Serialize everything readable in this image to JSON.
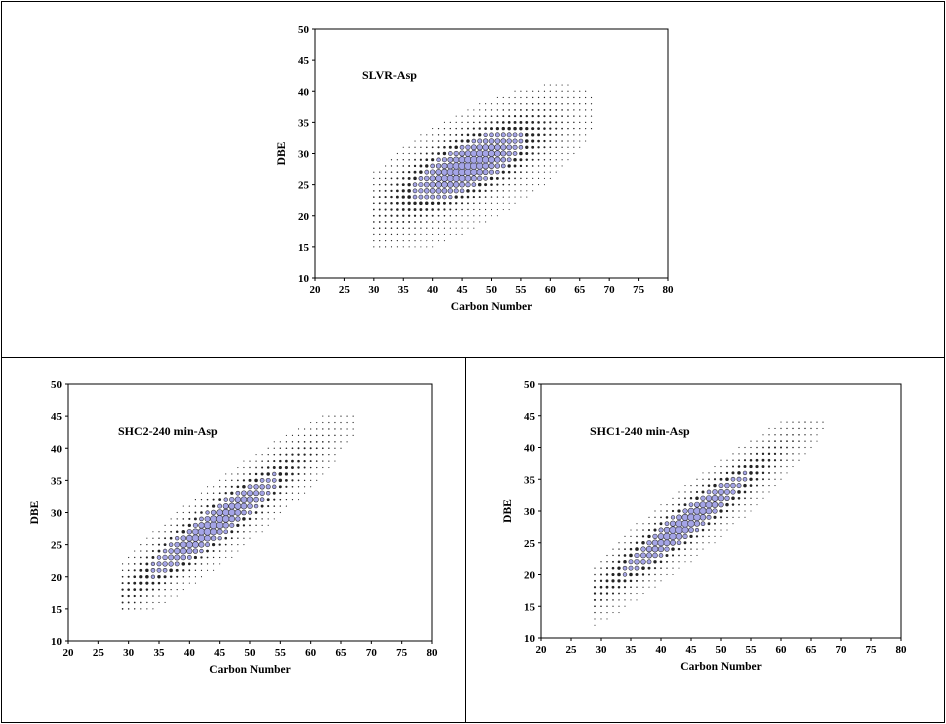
{
  "chart_data": [
    {
      "type": "scatter",
      "title": "SLVR-Asp",
      "xlabel": "Carbon Number",
      "ylabel": "DBE",
      "xlim": [
        20,
        80
      ],
      "ylim": [
        10,
        50
      ],
      "xticks": [
        "20",
        "25",
        "30",
        "35",
        "40",
        "45",
        "50",
        "55",
        "60",
        "65",
        "70",
        "75",
        "80"
      ],
      "yticks": [
        "10",
        "15",
        "20",
        "25",
        "30",
        "35",
        "40",
        "45",
        "50"
      ],
      "grid": false,
      "bubble_field": {
        "description_units": "data",
        "c_range": [
          30,
          70
        ],
        "dbe_range": [
          15,
          41
        ],
        "ridge_slope": 0.44,
        "ridge_intercept": 7,
        "center_c": 46,
        "center_dbe": 28,
        "half_width_dbe": 10,
        "half_length_c": 22,
        "highlight_color": "#a4a4e6"
      }
    },
    {
      "type": "scatter",
      "title": "SHC2-240 min-Asp",
      "xlabel": "Carbon Number",
      "ylabel": "DBE",
      "xlim": [
        20,
        80
      ],
      "ylim": [
        10,
        50
      ],
      "xticks": [
        "20",
        "25",
        "30",
        "35",
        "40",
        "45",
        "50",
        "55",
        "60",
        "65",
        "70",
        "75",
        "80"
      ],
      "yticks": [
        "10",
        "15",
        "20",
        "25",
        "30",
        "35",
        "40",
        "45",
        "50"
      ],
      "grid": false,
      "bubble_field": {
        "description_units": "data",
        "c_range": [
          29,
          71
        ],
        "dbe_range": [
          15,
          45
        ],
        "ridge_slope": 0.7,
        "ridge_intercept": -3,
        "center_c": 44,
        "center_dbe": 28,
        "half_width_dbe": 7,
        "half_length_c": 24,
        "highlight_color": "#a4a4e6"
      }
    },
    {
      "type": "scatter",
      "title": "SHC1-240 min-Asp",
      "xlabel": "Carbon Number",
      "ylabel": "DBE",
      "xlim": [
        20,
        80
      ],
      "ylim": [
        10,
        50
      ],
      "xticks": [
        "20",
        "25",
        "30",
        "35",
        "40",
        "45",
        "50",
        "55",
        "60",
        "65",
        "70",
        "75",
        "80"
      ],
      "yticks": [
        "10",
        "15",
        "20",
        "25",
        "30",
        "35",
        "40",
        "45",
        "50"
      ],
      "grid": false,
      "bubble_field": {
        "description_units": "data",
        "c_range": [
          29,
          69
        ],
        "dbe_range": [
          12,
          44
        ],
        "ridge_slope": 0.72,
        "ridge_intercept": -4,
        "center_c": 44,
        "center_dbe": 28,
        "half_width_dbe": 6.5,
        "half_length_c": 24,
        "highlight_color": "#a4a4e6"
      }
    }
  ]
}
